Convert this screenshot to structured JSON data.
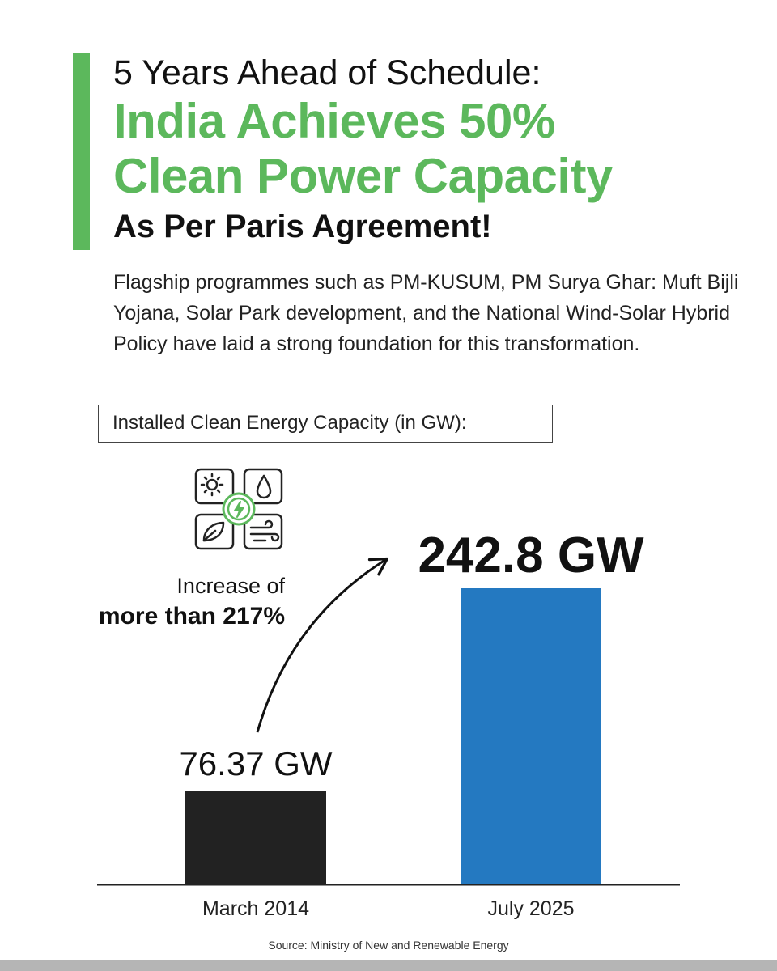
{
  "header": {
    "line1": "5 Years Ahead of Schedule:",
    "line2": "India Achieves 50%",
    "line3": "Clean Power Capacity",
    "line4": "As Per Paris Agreement!"
  },
  "description": "Flagship programmes such as PM-KUSUM, PM Surya Ghar: Muft Bijli Yojana, Solar Park development, and the National Wind-Solar Hybrid Policy have laid a strong foundation for this transformation.",
  "chart_label": "Installed Clean Energy Capacity (in GW):",
  "increase": {
    "prefix": "Increase of",
    "bold": "more than 217%"
  },
  "icon": "clean-energy-grid-icon",
  "source": "Source: Ministry of New and Renewable Energy",
  "colors": {
    "accent": "#5cb85c",
    "bar_2014": "#222222",
    "bar_2025": "#2479c1",
    "footer_strip": "#b5b5b5"
  },
  "chart_data": {
    "type": "bar",
    "categories": [
      "March 2014",
      "July 2025"
    ],
    "values": [
      76.37,
      242.8
    ],
    "value_labels": [
      "76.37 GW",
      "242.8 GW"
    ],
    "colors": [
      "#222222",
      "#2479c1"
    ],
    "ylim": [
      0,
      300
    ],
    "grid": false
  }
}
